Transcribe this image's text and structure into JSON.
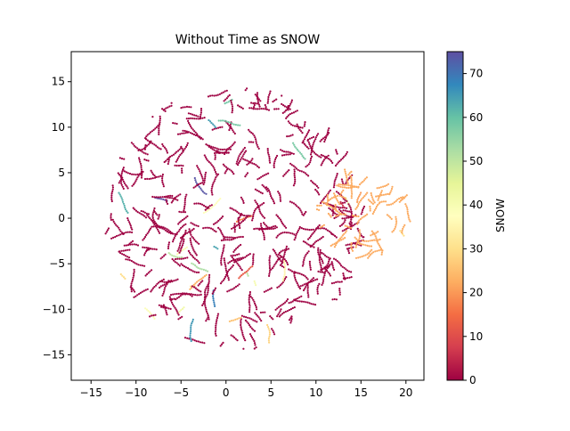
{
  "chart_data": {
    "type": "scatter",
    "title": "Without Time as SNOW",
    "xlabel": "",
    "ylabel": "",
    "xlim": [
      -17.2,
      22.0
    ],
    "ylim": [
      -17.8,
      18.3
    ],
    "xticks": [
      -15,
      -10,
      -5,
      0,
      5,
      10,
      15,
      20
    ],
    "yticks": [
      -15,
      -10,
      -5,
      0,
      5,
      10,
      15
    ],
    "grid": false,
    "colorbar": {
      "label": "SNOW",
      "colormap": "Spectral",
      "range": [
        0,
        75
      ],
      "ticks": [
        0,
        10,
        20,
        30,
        40,
        50,
        60,
        70
      ]
    },
    "series": [
      {
        "description_value": "SNOW",
        "clusters": [
          {
            "region": "main-disk",
            "center": [
              1.0,
              0.0
            ],
            "radius": 14.5,
            "dominant_value": 0,
            "approx_points": 2600
          },
          {
            "region": "right-lobe",
            "center": [
              15.3,
              0.8
            ],
            "radius": 5.3,
            "dominant_value": 22,
            "approx_points": 420
          }
        ],
        "sparse_values_range": [
          10,
          75
        ]
      }
    ]
  }
}
